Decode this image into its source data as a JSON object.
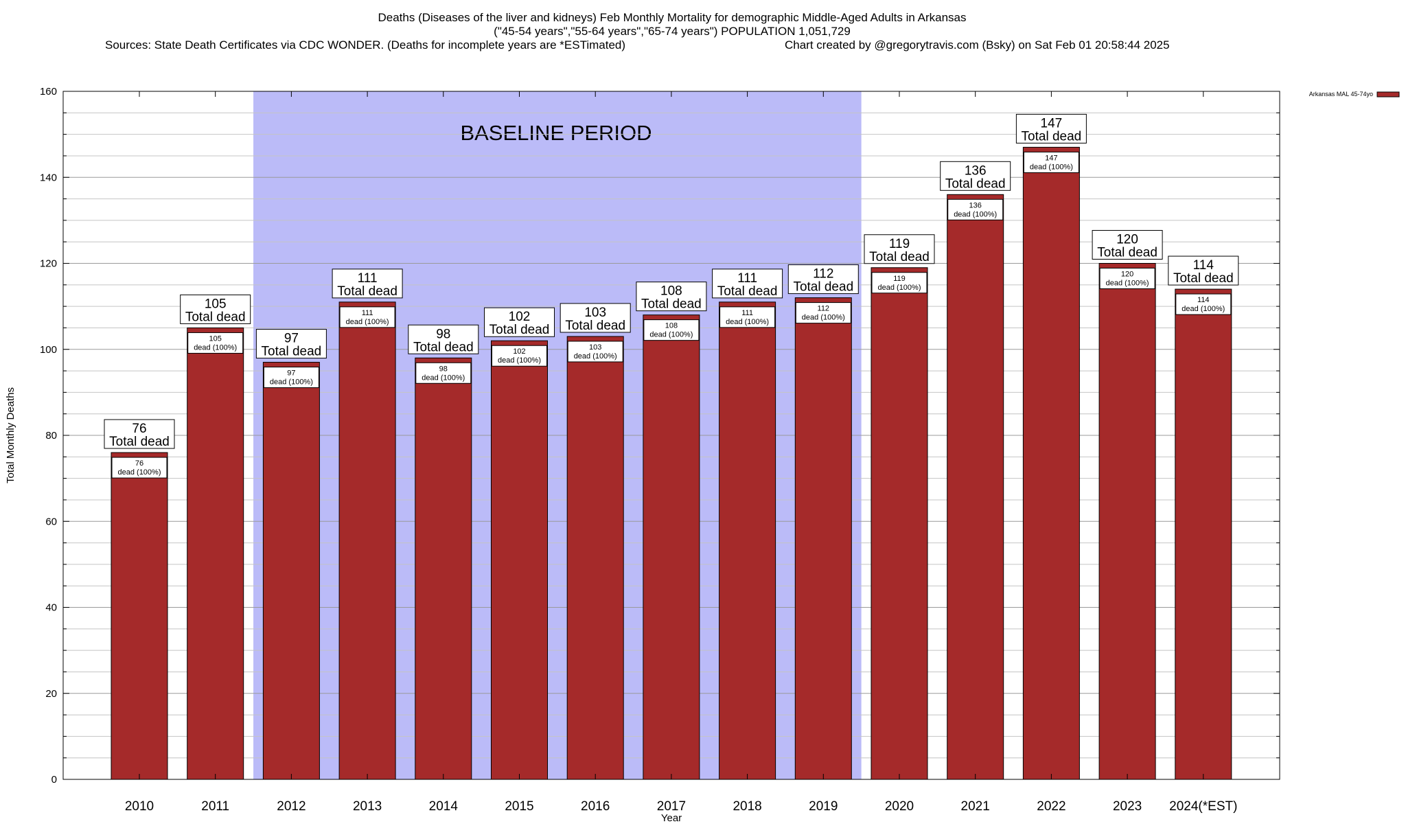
{
  "chart_data": {
    "type": "bar",
    "title_lines": [
      "Deaths (Diseases of the liver and kidneys) Feb Monthly Mortality for demographic Middle-Aged Adults in Arkansas",
      "(\"45-54 years\",\"55-64 years\",\"65-74 years\") POPULATION 1,051,729"
    ],
    "sources": "Sources: State Death Certificates via CDC WONDER. (Deaths for incomplete years are *ESTimated)",
    "credit": "Chart created by @gregorytravis.com (Bsky) on Sat Feb 01 20:58:44 2025",
    "xlabel": "Year",
    "ylabel": "Total Monthly Deaths",
    "ylim": [
      0,
      160
    ],
    "yticks": [
      0,
      20,
      40,
      60,
      80,
      100,
      120,
      140,
      160
    ],
    "categories": [
      "2010",
      "2011",
      "2012",
      "2013",
      "2014",
      "2015",
      "2016",
      "2017",
      "2018",
      "2019",
      "2020",
      "2021",
      "2022",
      "2023",
      "2024(*EST)"
    ],
    "series": [
      {
        "name": "Arkansas MAL 45-74yo",
        "color": "#a52a2a",
        "values": [
          76,
          105,
          97,
          111,
          98,
          102,
          103,
          108,
          111,
          112,
          119,
          136,
          147,
          120,
          114
        ]
      }
    ],
    "total_label_text": "Total dead",
    "inner_label_text": "dead (100%)",
    "baseline": {
      "label": "BASELINE PERIOD",
      "start": "2012",
      "end": "2019",
      "color": "#bbbbf8"
    },
    "grid": true,
    "legend_position": "top-right"
  }
}
